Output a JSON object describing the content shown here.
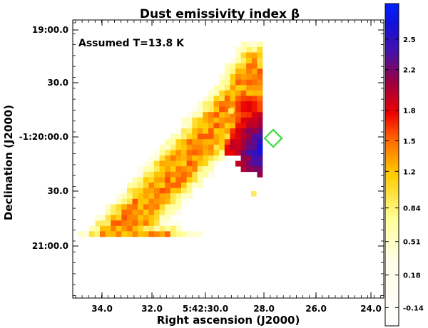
{
  "chart_data": {
    "type": "heatmap",
    "title": "Dust emissivity index β",
    "annotation": "Assumed T=13.8 K",
    "xlabel": "Right ascension (J2000)",
    "ylabel": "Declination (J2000)",
    "x_ticks": [
      "34.0",
      "32.0",
      "5:42:30.0",
      "28.0",
      "26.0",
      "24.0"
    ],
    "y_ticks": [
      "19:00.0",
      "30.0",
      "-1:20:00.0",
      "30.0",
      "21:00.0"
    ],
    "colorbar": {
      "min": -0.32,
      "max": 2.85,
      "ticks": [
        "2.5",
        "2.2",
        "1.8",
        "1.5",
        "1.2",
        "0.84",
        "0.51",
        "0.18",
        "-0.14"
      ],
      "tick_values": [
        2.5,
        2.2,
        1.8,
        1.5,
        1.2,
        0.84,
        0.51,
        0.18,
        -0.14
      ]
    },
    "grid_shape": [
      35,
      40
    ],
    "beta_range_in_map": [
      0.2,
      2.8
    ],
    "marker": {
      "shape": "diamond",
      "color": "#33dd33",
      "at": "peak β ≈ 2.8"
    }
  },
  "colors": {
    "axis": "#000000",
    "marker": "#33dd33"
  }
}
